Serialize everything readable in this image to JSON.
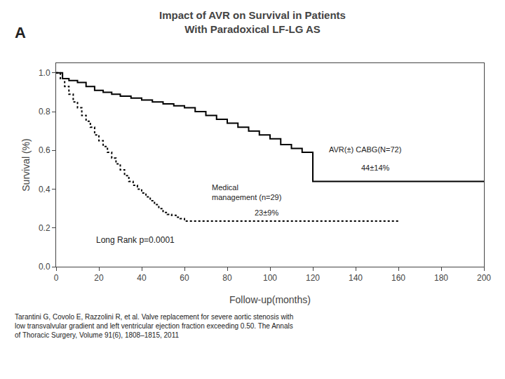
{
  "chart_data": {
    "type": "line",
    "title": "Impact of AVR on Survival in Patients\nWith Paradoxical LF-LG AS",
    "xlabel": "Follow-up(months)",
    "ylabel": "Survival (%)",
    "xlim": [
      0,
      200
    ],
    "ylim": [
      0.0,
      1.05
    ],
    "xticks": [
      0,
      20,
      40,
      60,
      80,
      100,
      120,
      140,
      160,
      180,
      200
    ],
    "yticks": [
      {
        "value": 0.0,
        "label": "0.0"
      },
      0.2,
      0.4,
      0.6,
      0.8,
      {
        "value": 1.0,
        "label": "1.0"
      }
    ],
    "grid": false,
    "series": [
      {
        "color": "#000000",
        "line_style": "solid",
        "x": [
          0,
          3,
          6,
          10,
          14,
          18,
          22,
          26,
          30,
          35,
          40,
          45,
          50,
          55,
          60,
          65,
          70,
          75,
          80,
          85,
          90,
          95,
          100,
          105,
          110,
          115,
          120,
          125,
          130,
          140,
          150,
          160,
          170,
          180,
          190,
          200
        ],
        "values": [
          1.0,
          0.97,
          0.96,
          0.95,
          0.93,
          0.91,
          0.9,
          0.89,
          0.88,
          0.87,
          0.86,
          0.85,
          0.84,
          0.83,
          0.82,
          0.8,
          0.78,
          0.76,
          0.74,
          0.72,
          0.7,
          0.68,
          0.66,
          0.63,
          0.61,
          0.59,
          0.44,
          0.44,
          0.44,
          0.44,
          0.44,
          0.44,
          0.44,
          0.44,
          0.44,
          0.44
        ]
      },
      {
        "color": "#000000",
        "line_style": "dotted",
        "x": [
          0,
          2,
          4,
          6,
          8,
          10,
          12,
          14,
          16,
          18,
          20,
          22,
          24,
          26,
          28,
          30,
          32,
          34,
          36,
          38,
          40,
          42,
          44,
          46,
          48,
          50,
          52,
          54,
          56,
          58,
          60,
          70,
          80,
          90,
          100,
          110,
          120,
          130,
          140,
          150,
          160
        ],
        "values": [
          1.0,
          0.97,
          0.93,
          0.89,
          0.85,
          0.82,
          0.78,
          0.75,
          0.72,
          0.68,
          0.65,
          0.62,
          0.59,
          0.56,
          0.53,
          0.5,
          0.47,
          0.44,
          0.42,
          0.4,
          0.38,
          0.36,
          0.34,
          0.32,
          0.3,
          0.28,
          0.27,
          0.265,
          0.255,
          0.248,
          0.235,
          0.235,
          0.235,
          0.235,
          0.235,
          0.235,
          0.235,
          0.235,
          0.235,
          0.235,
          0.235
        ]
      }
    ],
    "annotations": [
      "Long Rank p=0.0001",
      "AVR(±) CABG(N=72)",
      "44±14%",
      "Medical\nmanagement (n=29)",
      "23±9%",
      "A",
      "Tarantini G, Covolo E, Razzolini R, et al. Valve replacement for severe aortic stenosis with\nlow transvalvular gradient and left ventricular ejection fraction exceeding 0.50. The Annals\nof Thoracic Surgery, Volume 91(6), 1808–1815, 2011"
    ]
  }
}
